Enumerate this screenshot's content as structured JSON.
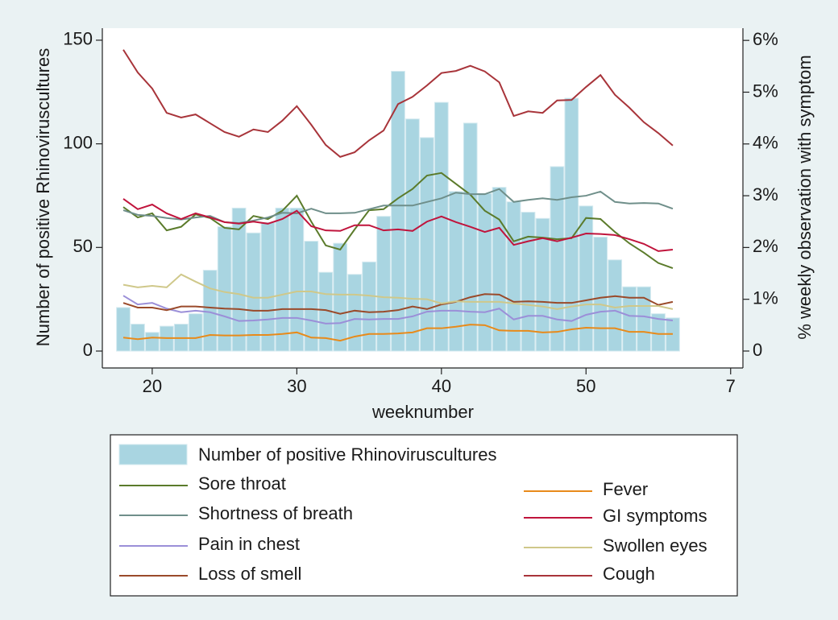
{
  "chart_data": {
    "type": "combo",
    "x_label": "weeknumber",
    "y_label": "Number of positive Rhinoviruscultures",
    "y2_label": "% weekly observation with symptom",
    "x": [
      18,
      19,
      20,
      21,
      22,
      23,
      24,
      25,
      26,
      27,
      28,
      29,
      30,
      31,
      32,
      33,
      34,
      35,
      36,
      37,
      38,
      39,
      40,
      41,
      42,
      43,
      44,
      45,
      46,
      47,
      48,
      49,
      50,
      51,
      52,
      53,
      54,
      55,
      56
    ],
    "xlim": [
      16.55,
      60.85
    ],
    "xticks": [
      20,
      30,
      40,
      50,
      {
        "value": 60,
        "label": "7"
      }
    ],
    "ylim": [
      -8.16,
      155.8
    ],
    "yticks": [
      0,
      50,
      100,
      150
    ],
    "y2lim": [
      -0.327,
      6.236
    ],
    "y2ticks": [
      0,
      {
        "value": 1,
        "label": "1%"
      },
      {
        "value": 2,
        "label": "2%"
      },
      {
        "value": 3,
        "label": "3%"
      },
      {
        "value": 4,
        "label": "4%"
      },
      {
        "value": 5,
        "label": "5%"
      },
      {
        "value": 6,
        "label": "6%"
      }
    ],
    "series": [
      {
        "name": "Number of positive Rhinoviruscultures",
        "type": "bar",
        "color": "#a9d5e1",
        "axis": "y",
        "values": [
          21,
          13,
          9,
          12,
          13,
          18,
          39,
          60,
          69,
          57,
          62,
          69,
          69,
          53,
          38,
          52,
          37,
          43,
          65,
          135,
          112,
          103,
          120,
          77,
          110,
          76,
          79,
          72,
          67,
          64,
          89,
          122,
          70,
          55,
          44,
          31,
          31,
          18,
          16
        ]
      },
      {
        "name": "Sore throat",
        "type": "line",
        "color": "#5b7b2b",
        "axis": "y2",
        "values": [
          2.78,
          2.58,
          2.66,
          2.33,
          2.4,
          2.64,
          2.57,
          2.38,
          2.35,
          2.61,
          2.55,
          2.71,
          3.0,
          2.5,
          2.04,
          1.96,
          2.35,
          2.72,
          2.74,
          2.95,
          3.13,
          3.39,
          3.44,
          3.23,
          3.02,
          2.71,
          2.54,
          2.12,
          2.21,
          2.19,
          2.16,
          2.18,
          2.57,
          2.55,
          2.3,
          2.08,
          1.9,
          1.7,
          1.6
        ]
      },
      {
        "name": "Shortness of breath",
        "type": "line",
        "color": "#6f8f8a",
        "axis": "y2",
        "values": [
          2.72,
          2.63,
          2.61,
          2.57,
          2.54,
          2.58,
          2.61,
          2.49,
          2.47,
          2.52,
          2.58,
          2.67,
          2.66,
          2.75,
          2.66,
          2.66,
          2.67,
          2.74,
          2.81,
          2.81,
          2.81,
          2.88,
          2.95,
          3.06,
          3.03,
          3.03,
          3.13,
          2.88,
          2.92,
          2.95,
          2.92,
          2.97,
          3.0,
          3.08,
          2.88,
          2.85,
          2.86,
          2.85,
          2.75
        ]
      },
      {
        "name": "Pain in chest",
        "type": "line",
        "color": "#9b8fd8",
        "axis": "y2",
        "values": [
          1.07,
          0.9,
          0.93,
          0.82,
          0.75,
          0.78,
          0.75,
          0.67,
          0.58,
          0.59,
          0.61,
          0.64,
          0.64,
          0.59,
          0.53,
          0.54,
          0.62,
          0.61,
          0.62,
          0.62,
          0.67,
          0.76,
          0.78,
          0.78,
          0.76,
          0.75,
          0.82,
          0.61,
          0.68,
          0.68,
          0.61,
          0.58,
          0.7,
          0.76,
          0.78,
          0.68,
          0.67,
          0.62,
          0.59
        ]
      },
      {
        "name": "Loss of smell",
        "type": "line",
        "color": "#9a4a2a",
        "axis": "y2",
        "values": [
          0.93,
          0.84,
          0.84,
          0.79,
          0.86,
          0.86,
          0.84,
          0.82,
          0.81,
          0.78,
          0.78,
          0.81,
          0.81,
          0.81,
          0.79,
          0.72,
          0.78,
          0.75,
          0.76,
          0.79,
          0.86,
          0.81,
          0.9,
          0.95,
          1.04,
          1.1,
          1.09,
          0.95,
          0.96,
          0.95,
          0.93,
          0.93,
          0.98,
          1.03,
          1.06,
          1.03,
          1.03,
          0.89,
          0.95
        ]
      },
      {
        "name": "Fever",
        "type": "line",
        "color": "#e88a1a",
        "axis": "y2",
        "values": [
          0.26,
          0.23,
          0.26,
          0.25,
          0.25,
          0.25,
          0.31,
          0.3,
          0.3,
          0.31,
          0.31,
          0.33,
          0.36,
          0.26,
          0.25,
          0.2,
          0.28,
          0.33,
          0.33,
          0.34,
          0.36,
          0.44,
          0.44,
          0.47,
          0.51,
          0.5,
          0.4,
          0.39,
          0.39,
          0.36,
          0.37,
          0.42,
          0.45,
          0.44,
          0.44,
          0.37,
          0.37,
          0.33,
          0.33
        ]
      },
      {
        "name": "GI symptoms",
        "type": "line",
        "color": "#c0143c",
        "axis": "y2",
        "values": [
          2.94,
          2.74,
          2.83,
          2.66,
          2.55,
          2.66,
          2.58,
          2.49,
          2.46,
          2.5,
          2.46,
          2.55,
          2.71,
          2.41,
          2.33,
          2.32,
          2.43,
          2.43,
          2.33,
          2.35,
          2.32,
          2.5,
          2.6,
          2.49,
          2.4,
          2.3,
          2.38,
          2.05,
          2.12,
          2.18,
          2.12,
          2.19,
          2.27,
          2.26,
          2.24,
          2.16,
          2.07,
          1.93,
          1.96
        ]
      },
      {
        "name": "Swollen eyes",
        "type": "line",
        "color": "#cfc88a",
        "axis": "y2",
        "values": [
          1.28,
          1.23,
          1.26,
          1.23,
          1.48,
          1.34,
          1.21,
          1.14,
          1.1,
          1.03,
          1.03,
          1.09,
          1.15,
          1.15,
          1.1,
          1.09,
          1.09,
          1.07,
          1.04,
          1.03,
          1.01,
          1.0,
          0.92,
          0.96,
          0.95,
          0.95,
          0.95,
          0.92,
          0.89,
          0.86,
          0.81,
          0.86,
          0.9,
          0.9,
          0.84,
          0.87,
          0.87,
          0.87,
          0.81
        ]
      },
      {
        "name": "Cough",
        "type": "line",
        "color": "#a8343a",
        "axis": "y2",
        "values": [
          5.82,
          5.38,
          5.07,
          4.6,
          4.51,
          4.57,
          4.4,
          4.23,
          4.14,
          4.28,
          4.23,
          4.45,
          4.73,
          4.37,
          3.98,
          3.75,
          3.84,
          4.07,
          4.26,
          4.77,
          4.91,
          5.13,
          5.37,
          5.41,
          5.51,
          5.4,
          5.19,
          4.54,
          4.63,
          4.6,
          4.84,
          4.85,
          5.1,
          5.33,
          4.95,
          4.7,
          4.42,
          4.21,
          3.97
        ]
      }
    ]
  }
}
